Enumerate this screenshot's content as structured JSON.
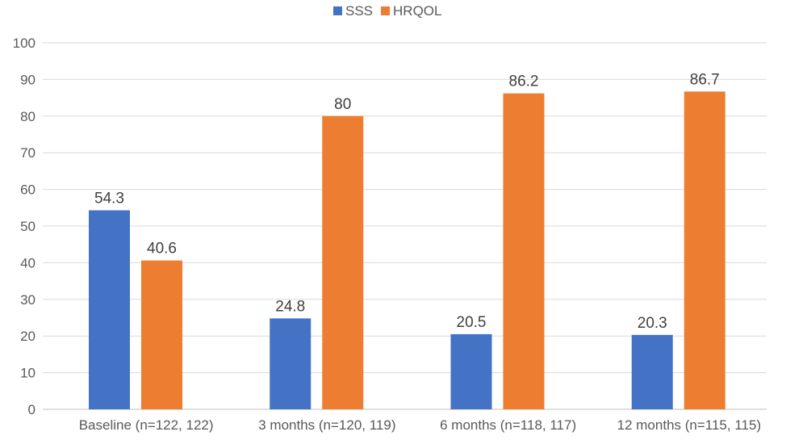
{
  "chart_data": {
    "type": "bar",
    "title": "",
    "xlabel": "",
    "ylabel": "",
    "categories": [
      "Baseline (n=122, 122)",
      "3 months (n=120, 119)",
      "6 months (n=118, 117)",
      "12 months (n=115, 115)"
    ],
    "series": [
      {
        "name": "SSS",
        "color": "#4472C4",
        "values": [
          54.3,
          24.8,
          20.5,
          20.3
        ]
      },
      {
        "name": "HRQOL",
        "color": "#ED7D31",
        "values": [
          40.6,
          80,
          86.2,
          86.7
        ]
      }
    ],
    "ylim": [
      0,
      100
    ],
    "yticks": [
      0,
      10,
      20,
      30,
      40,
      50,
      60,
      70,
      80,
      90,
      100
    ],
    "grid": true,
    "legend": "top-center"
  }
}
